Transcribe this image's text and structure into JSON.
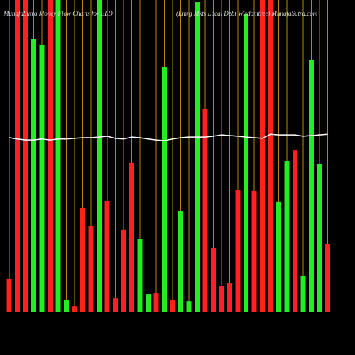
{
  "chart_data": {
    "type": "bar",
    "title": "MunafaSutra Money Flow Charts for ELD",
    "subtitle": "(Emrg Mkts Local Debt Wisdomtree) MunafaSutra.com",
    "ylim": [
      0,
      100
    ],
    "values": [
      10.7,
      100,
      100,
      87.5,
      85.7,
      100,
      100,
      3.9,
      2,
      33.4,
      27.7,
      100,
      35.7,
      4.5,
      26.4,
      48,
      23.4,
      5.9,
      6.1,
      78.6,
      3.9,
      32.5,
      3.6,
      99.3,
      65.2,
      20.7,
      8.4,
      9.3,
      39.1,
      95.5,
      38.9,
      100,
      100,
      35.5,
      48.4,
      52,
      11.6,
      80.7,
      47.5,
      22
    ],
    "colors": [
      "#ff2020",
      "#ff2020",
      "#ff2020",
      "#22ee22",
      "#22ee22",
      "#ff2020",
      "#22ee22",
      "#22ee22",
      "#ff2020",
      "#ff2020",
      "#ff2020",
      "#22ee22",
      "#ff2020",
      "#ff2020",
      "#ff2020",
      "#ff2020",
      "#22ee22",
      "#22ee22",
      "#ff2020",
      "#22ee22",
      "#ff2020",
      "#22ee22",
      "#22ee22",
      "#22ee22",
      "#ff2020",
      "#ff2020",
      "#ff2020",
      "#ff2020",
      "#ff2020",
      "#22ee22",
      "#ff2020",
      "#ff2020",
      "#ff2020",
      "#22ee22",
      "#22ee22",
      "#ff2020",
      "#22ee22",
      "#22ee22",
      "#22ee22",
      "#ff2020"
    ],
    "line": {
      "color": "#ffffff",
      "values": [
        55.9,
        55.5,
        55.2,
        55.2,
        55.5,
        55.2,
        55.5,
        55.5,
        55.7,
        55.9,
        55.9,
        56.1,
        56.4,
        55.7,
        55.5,
        56.1,
        55.9,
        55.5,
        55.2,
        55.0,
        55.5,
        55.9,
        56.1,
        56.1,
        56.1,
        56.4,
        56.8,
        56.6,
        56.4,
        56.1,
        55.9,
        55.7,
        57.0,
        56.8,
        56.8,
        56.8,
        56.4,
        56.6,
        56.8,
        57.0
      ]
    },
    "guide_color": "#b8860b"
  }
}
